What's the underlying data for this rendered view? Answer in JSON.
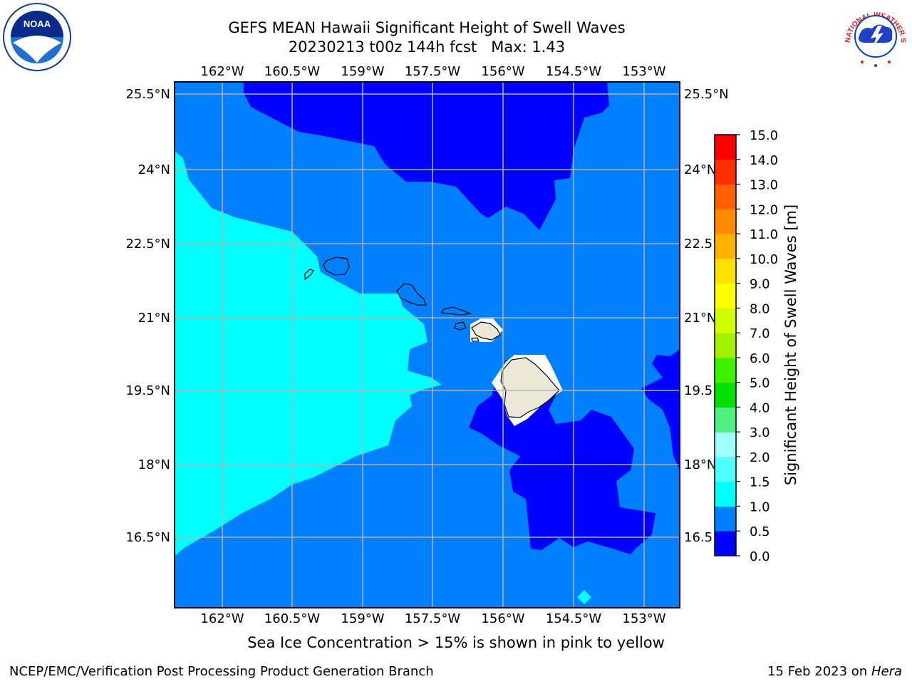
{
  "title_line1": "GEFS MEAN Hawaii Significant Height of Swell Waves",
  "title_line2": "20230213 t00z 144h fcst   Max: 1.43",
  "lon_labels": [
    "162°W",
    "160.5°W",
    "159°W",
    "157.5°W",
    "156°W",
    "154.5°W",
    "153°W"
  ],
  "lat_labels_left": [
    "25.5°N",
    "24°N",
    "22.5°N",
    "21°N",
    "19.5°N",
    "18°N",
    "16.5°N"
  ],
  "lat_labels_right": [
    "25.5°N",
    "24°N",
    "22.5°",
    "21°N",
    "19.5",
    "18°N",
    "16.5"
  ],
  "colorbar": {
    "label": "Significant Height of Swell Waves [m]",
    "ticks": [
      "0.0",
      "0.5",
      "1.0",
      "1.5",
      "2.0",
      "3.0",
      "4.0",
      "5.0",
      "6.0",
      "7.0",
      "8.0",
      "9.0",
      "10.0",
      "11.0",
      "12.0",
      "13.0",
      "14.0",
      "15.0"
    ],
    "colors": [
      "#0000ff",
      "#0080ff",
      "#00ffff",
      "#50ffff",
      "#a0ffff",
      "#50f080",
      "#00e000",
      "#40f000",
      "#a0f000",
      "#d0ff00",
      "#ffff00",
      "#ffe000",
      "#ffb000",
      "#ff8c00",
      "#ff6000",
      "#ff3000",
      "#ff0000"
    ]
  },
  "field_colors": {
    "lt_0_5": "#0000ff",
    "0_5_to_1_0": "#0080ff",
    "1_0_to_1_5": "#00ffff",
    "land": "#ece8d8",
    "grid": "#b4b4b4"
  },
  "logos": {
    "noaa_text": "NOAA",
    "nws_text": "NATIONAL WEATHER SERVICE"
  },
  "caption": "Sea Ice Concentration > 15% is shown in pink to yellow",
  "footer_left": "NCEP/EMC/Verification Post Processing Product Generation Branch",
  "footer_right_date": "15 Feb 2023 on ",
  "footer_right_host": "Hera"
}
